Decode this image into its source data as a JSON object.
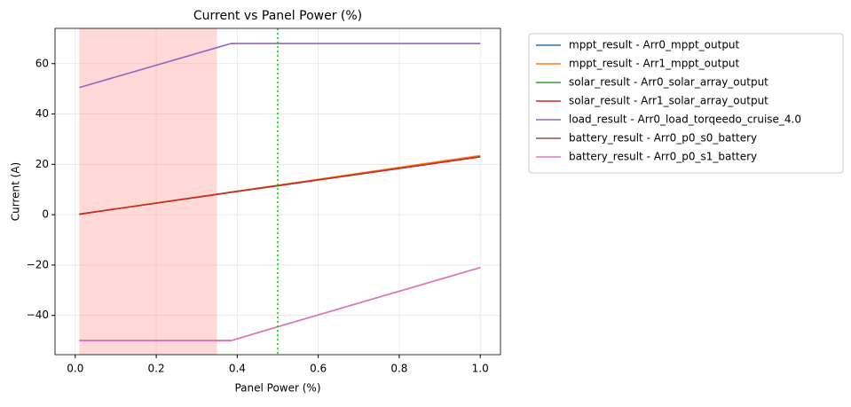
{
  "chart_data": {
    "type": "line",
    "title": "Current vs Panel Power (%)",
    "x_label": "Panel Power (%)",
    "y_label": "Current (A)",
    "x": [
      0.01,
      0.385,
      0.5,
      1.0
    ],
    "series": [
      {
        "name": "mppt_result - Arr0_mppt_output",
        "color": "#1f77b4",
        "values": [
          0.2,
          8.9,
          11.5,
          23.0
        ]
      },
      {
        "name": "mppt_result - Arr1_mppt_output",
        "color": "#ff7f0e",
        "values": [
          0.2,
          9.0,
          11.7,
          23.5
        ]
      },
      {
        "name": "solar_result - Arr0_solar_array_output",
        "color": "#2ca02c",
        "values": [
          0.2,
          8.9,
          11.5,
          23.0
        ]
      },
      {
        "name": "solar_result - Arr1_solar_array_output",
        "color": "#d62728",
        "values": [
          0.2,
          8.9,
          11.5,
          23.0
        ]
      },
      {
        "name": "load_result - Arr0_load_torqeedo_cruise_4.0",
        "color": "#9467bd",
        "values": [
          50.5,
          68,
          68,
          68
        ]
      },
      {
        "name": "battery_result - Arr0_p0_s0_battery",
        "color": "#8c564b",
        "values": [
          -50,
          -50,
          -44.5,
          -21
        ]
      },
      {
        "name": "battery_result - Arr0_p0_s1_battery",
        "color": "#e377c2",
        "values": [
          -50,
          -50,
          -44.5,
          -21
        ]
      }
    ],
    "xlim": [
      -0.05,
      1.05
    ],
    "ylim": [
      -55.6,
      74
    ],
    "xticks": [
      {
        "value": 0,
        "label": "0.0"
      },
      0.2,
      0.4,
      0.6,
      0.8,
      {
        "value": 1,
        "label": "1.0"
      }
    ],
    "yticks": [
      {
        "value": -40,
        "label": "−40"
      },
      {
        "value": -20,
        "label": "−20"
      },
      0,
      20,
      40,
      60
    ],
    "grid": true,
    "legend": "outside right",
    "shaded_span": [
      0.01,
      0.35
    ],
    "shaded_color": "#ff9999",
    "vline": 0.5,
    "vline_color": "#00dd00"
  }
}
